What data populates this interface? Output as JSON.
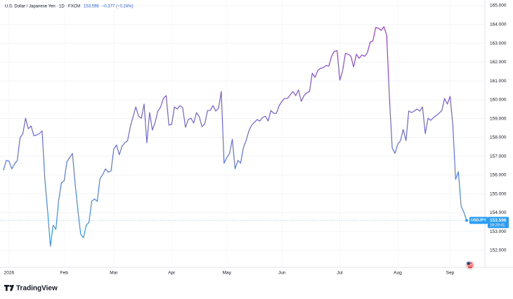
{
  "chart_data": {
    "type": "line",
    "title": "U.S. Dollar / Japanese Yen · 1D · FXCM",
    "quote": {
      "last": "153.596",
      "change": "−0.377 (−0.24%)"
    },
    "price_tag": {
      "symbol": "USDJPY",
      "price": "153.596",
      "time": "18:29:41"
    },
    "categories": [
      null,
      null,
      "2026",
      null,
      null,
      null,
      null,
      null,
      null,
      null,
      null,
      null,
      null,
      null,
      null,
      null,
      null,
      null,
      null,
      null,
      null,
      null,
      "Feb",
      null,
      null,
      null,
      null,
      null,
      null,
      null,
      null,
      null,
      null,
      null,
      null,
      null,
      null,
      null,
      null,
      null,
      "Mar",
      null,
      null,
      null,
      null,
      null,
      null,
      null,
      null,
      null,
      null,
      null,
      null,
      null,
      null,
      null,
      null,
      null,
      null,
      null,
      null,
      "Apr",
      null,
      null,
      null,
      null,
      null,
      null,
      null,
      null,
      null,
      null,
      null,
      null,
      null,
      null,
      null,
      null,
      null,
      null,
      null,
      "May",
      null,
      null,
      null,
      null,
      null,
      null,
      null,
      null,
      null,
      null,
      null,
      null,
      null,
      null,
      null,
      null,
      null,
      null,
      null,
      "Jun",
      null,
      null,
      null,
      null,
      null,
      null,
      null,
      null,
      null,
      null,
      null,
      null,
      null,
      null,
      null,
      null,
      null,
      null,
      null,
      null,
      "Jul",
      null,
      null,
      null,
      null,
      null,
      null,
      null,
      null,
      null,
      null,
      null,
      null,
      null,
      null,
      null,
      null,
      null,
      null,
      null,
      null,
      "Aug",
      null,
      null,
      null,
      null,
      null,
      null,
      null,
      null,
      null,
      null,
      null,
      null,
      null,
      null,
      null,
      null,
      null,
      null,
      "Sep",
      null,
      null,
      null,
      null,
      null,
      null
    ],
    "values": [
      156.26,
      156.78,
      156.74,
      156.33,
      156.59,
      156.78,
      157.98,
      158.2,
      159.02,
      158.46,
      158.61,
      158.09,
      158.13,
      158.2,
      158.35,
      155.77,
      154.09,
      152.22,
      153.34,
      153.12,
      154.65,
      155.59,
      155.7,
      156.71,
      156.93,
      157.15,
      155.51,
      154.09,
      152.86,
      152.67,
      153.34,
      153.49,
      154.61,
      154.73,
      154.61,
      155.81,
      156.03,
      156.33,
      156.15,
      156.22,
      157.38,
      157.6,
      157.08,
      157.53,
      157.71,
      157.83,
      158.57,
      159.1,
      159.62,
      159.13,
      159.02,
      159.77,
      157.71,
      159.32,
      158.39,
      158.8,
      159.4,
      159.62,
      160.07,
      160.22,
      158.65,
      158.69,
      159.62,
      159.51,
      159.69,
      159.58,
      158.54,
      158.95,
      159.02,
      158.76,
      159.32,
      159.1,
      158.57,
      158.72,
      159.43,
      159.43,
      159.69,
      159.4,
      159.55,
      160.44,
      156.63,
      156.93,
      157.15,
      157.9,
      156.33,
      156.78,
      156.63,
      157.45,
      157.83,
      158.35,
      158.65,
      158.8,
      158.95,
      158.87,
      159.06,
      159.13,
      158.87,
      159.43,
      159.28,
      159.28,
      159.69,
      159.92,
      160.07,
      160.07,
      160.26,
      160.44,
      160.22,
      160.52,
      159.92,
      160.22,
      160.37,
      160.44,
      161.41,
      161.19,
      161.56,
      161.67,
      161.71,
      161.82,
      161.79,
      162.31,
      162.57,
      162.61,
      161.04,
      161.53,
      162.46,
      162.42,
      162.31,
      161.75,
      162.42,
      162.2,
      162.38,
      162.31,
      162.5,
      163.06,
      163.13,
      163.84,
      163.8,
      163.69,
      163.88,
      163.43,
      160.07,
      157.45,
      157.15,
      157.64,
      157.83,
      158.42,
      157.83,
      159.4,
      159.32,
      159.4,
      159.51,
      159.4,
      159.62,
      158.2,
      159.02,
      158.91,
      159.06,
      159.17,
      159.28,
      159.43,
      160.07,
      159.77,
      160.18,
      158.65,
      155.77,
      156.18,
      154.35,
      154.02,
      153.596
    ],
    "gradient": [
      "#a336d8",
      "#2a9df4"
    ],
    "ylim": [
      151.1,
      165.3
    ],
    "yticks": [
      {
        "value": 152,
        "label": "152.000"
      },
      {
        "value": 153,
        "label": "153.000"
      },
      {
        "value": 154,
        "label": "154.000"
      },
      {
        "value": 155,
        "label": "155.000"
      },
      {
        "value": 156,
        "label": "156.000"
      },
      {
        "value": 157,
        "label": "157.000"
      },
      {
        "value": 158,
        "label": "158.000"
      },
      {
        "value": 159,
        "label": "159.000"
      },
      {
        "value": 160,
        "label": "160.000"
      },
      {
        "value": 161,
        "label": "161.000"
      },
      {
        "value": 162,
        "label": "162.000"
      },
      {
        "value": 163,
        "label": "163.000"
      },
      {
        "value": 164,
        "label": "164.000"
      },
      {
        "value": 165,
        "label": "165.000"
      }
    ],
    "grid": true
  },
  "footer": {
    "brand": "TradingView"
  }
}
